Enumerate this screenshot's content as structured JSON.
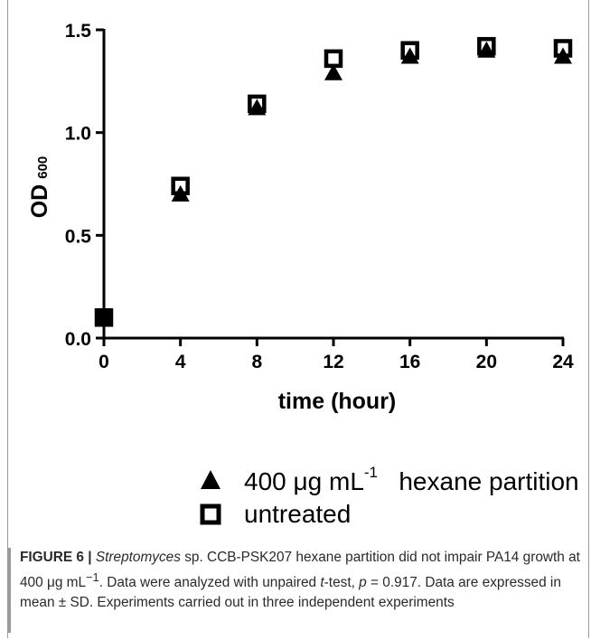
{
  "chart_data": {
    "type": "scatter",
    "xlabel": "time (hour)",
    "ylabel_main": "OD",
    "ylabel_sub": "600",
    "xlim": [
      0,
      24
    ],
    "ylim": [
      0,
      1.5
    ],
    "x_ticks": [
      0,
      4,
      8,
      12,
      16,
      20,
      24
    ],
    "x_tick_labels": [
      "0",
      "4",
      "8",
      "12",
      "16",
      "20",
      "24"
    ],
    "y_ticks": [
      0.0,
      0.5,
      1.0,
      1.5
    ],
    "y_tick_labels": [
      "0.0",
      "0.5",
      "1.0",
      "1.5"
    ],
    "grid": false,
    "legend_position": "bottom",
    "series": [
      {
        "name_parts": [
          "400 ",
          "μ",
          "g mL",
          "-1",
          "hexane partition"
        ],
        "marker": "triangle",
        "x": [
          0,
          4,
          8,
          12,
          16,
          20,
          24
        ],
        "y": [
          0.1,
          0.7,
          1.12,
          1.29,
          1.37,
          1.4,
          1.37
        ]
      },
      {
        "name": "untreated",
        "marker": "square",
        "x": [
          0,
          4,
          8,
          12,
          16,
          20,
          24
        ],
        "y": [
          0.1,
          0.74,
          1.14,
          1.36,
          1.4,
          1.42,
          1.41
        ]
      }
    ]
  },
  "caption": {
    "label": "FIGURE 6 |",
    "species": "Streptomyces",
    "text1": " sp. CCB-PSK207 hexane partition did not impair PA14 growth at 400 ",
    "mu": "μ",
    "text2": "g mL",
    "exp": "−1",
    "text3": ". Data were analyzed with unpaired ",
    "t": "t",
    "text4": "-test, ",
    "p": "p",
    "text5": " = 0.917. Data are expressed in mean ± SD. Experiments carried out in three independent experiments"
  }
}
